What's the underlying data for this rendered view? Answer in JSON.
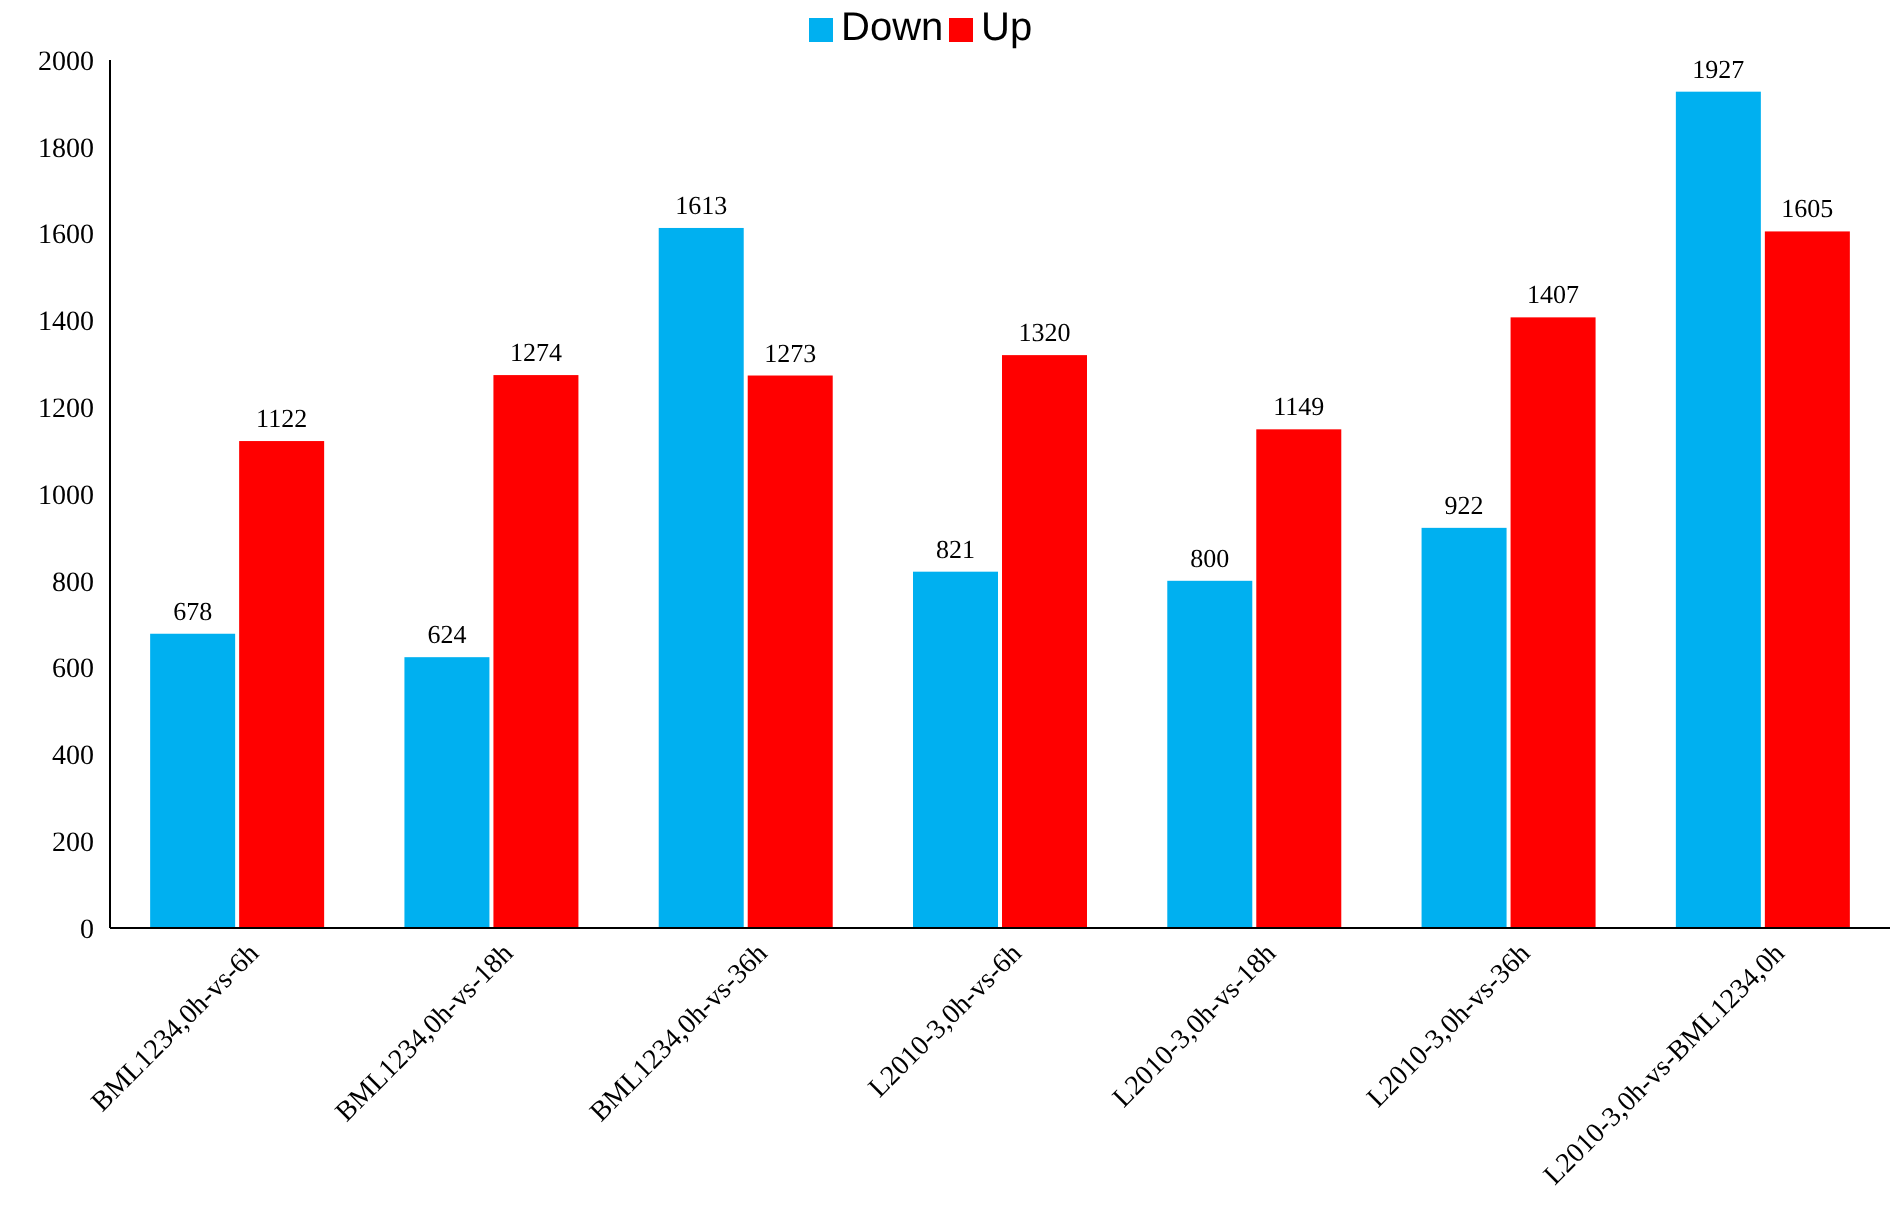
{
  "chart_data": {
    "type": "bar",
    "categories": [
      "BML1234,0h-vs-6h",
      "BML1234,0h-vs-18h",
      "BML1234,0h-vs-36h",
      "L2010-3,0h-vs-6h",
      "L2010-3,0h-vs-18h",
      "L2010-3,0h-vs-36h",
      "L2010-3,0h-vs-BML1234,0h"
    ],
    "series": [
      {
        "name": "Down",
        "color": "#00b0f0",
        "values": [
          678,
          624,
          1613,
          821,
          800,
          922,
          1927
        ]
      },
      {
        "name": "Up",
        "color": "#ff0000",
        "values": [
          1122,
          1274,
          1273,
          1320,
          1149,
          1407,
          1605
        ]
      }
    ],
    "ylim": [
      0,
      2000
    ],
    "yticks": [
      0,
      200,
      400,
      600,
      800,
      1000,
      1200,
      1400,
      1600,
      1800,
      2000
    ],
    "data_labels": true,
    "legend": "top",
    "grid": false
  }
}
